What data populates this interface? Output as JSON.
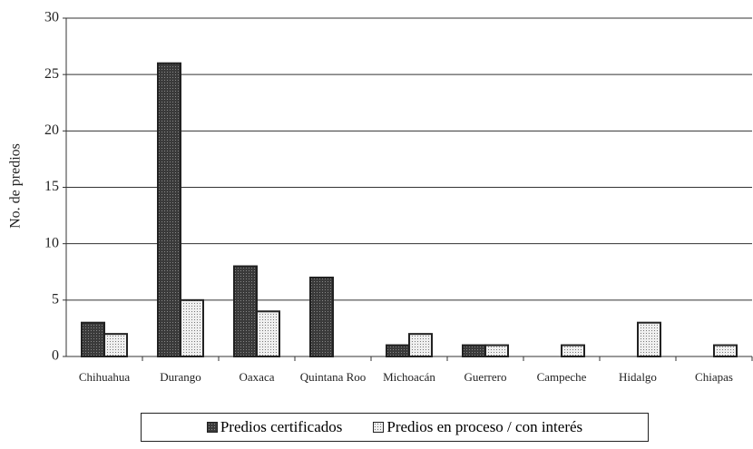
{
  "chart_data": {
    "type": "bar",
    "y_label": "No. de predios",
    "categories": [
      "Chihuahua",
      "Durango",
      "Oaxaca",
      "Quintana Roo",
      "Michoacán",
      "Guerrero",
      "Campeche",
      "Hidalgo",
      "Chiapas"
    ],
    "series": [
      {
        "name": "Predios certificados",
        "color": "#3a3a3a",
        "values": [
          3,
          26,
          8,
          7,
          1,
          1,
          0,
          0,
          0
        ]
      },
      {
        "name": "Predios en proceso / con interés",
        "color": "#efefef",
        "values": [
          2,
          5,
          4,
          0,
          2,
          1,
          1,
          3,
          1
        ]
      }
    ],
    "ylim": [
      0,
      30
    ],
    "yticks": [
      0,
      5,
      10,
      15,
      20,
      25,
      30
    ],
    "grid": true,
    "legend": "bottom"
  }
}
